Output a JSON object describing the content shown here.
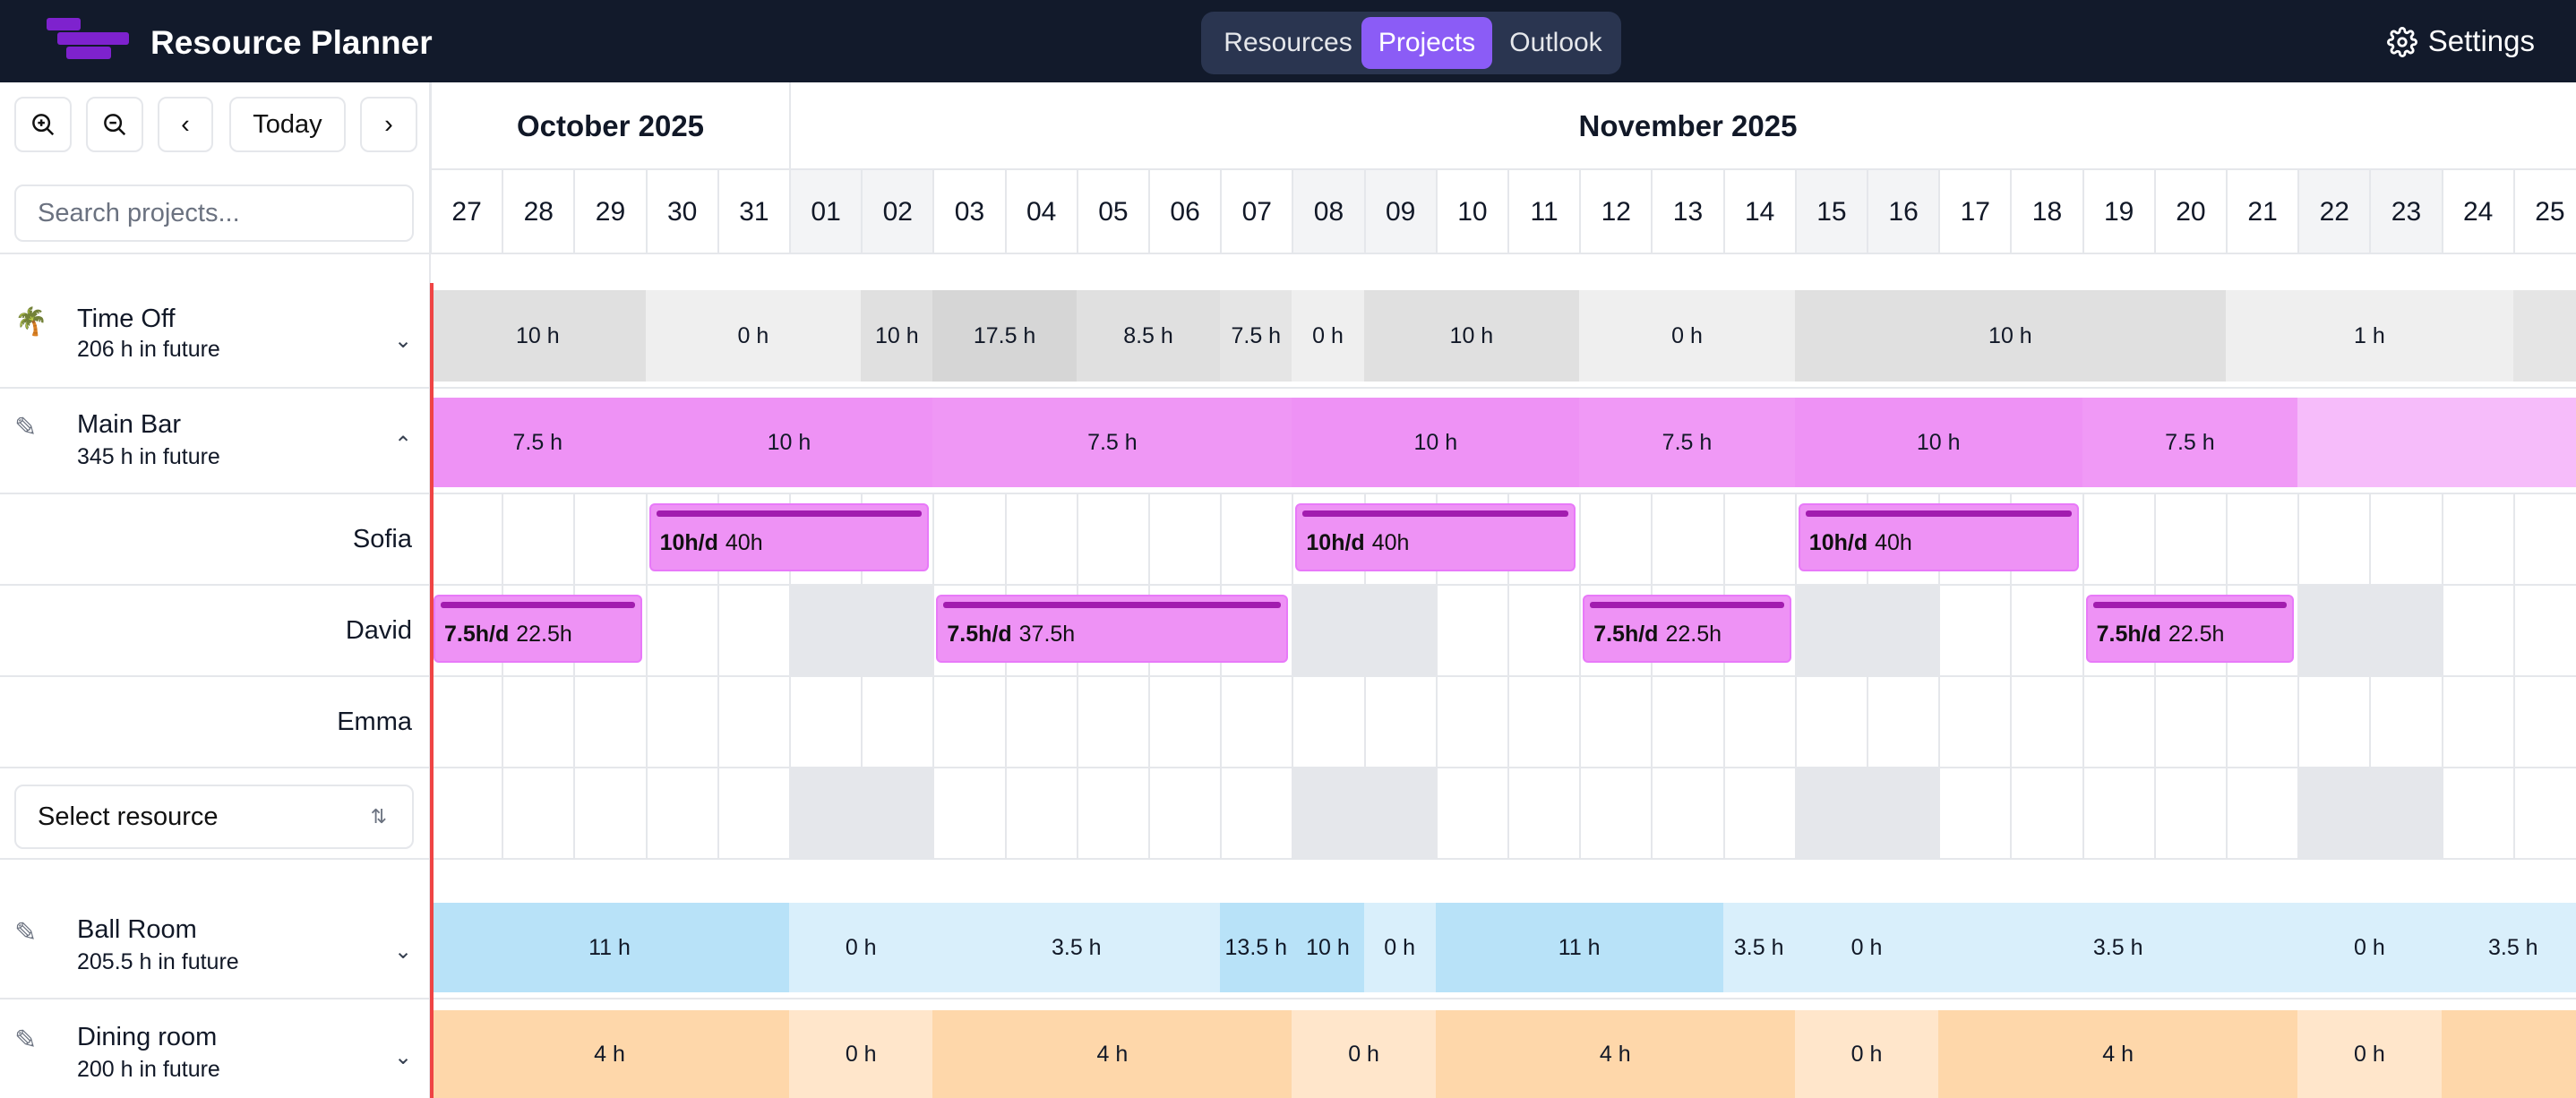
{
  "app": {
    "title": "Resource Planner"
  },
  "nav": {
    "tabs": [
      {
        "label": "Resources"
      },
      {
        "label": "Projects",
        "active": true
      },
      {
        "label": "Outlook"
      }
    ],
    "settings_label": "Settings"
  },
  "toolbar": {
    "today_label": "Today",
    "search_placeholder": "Search projects..."
  },
  "calendar": {
    "months": [
      {
        "label": "October 2025"
      },
      {
        "label": "November 2025"
      }
    ],
    "days": [
      "27",
      "28",
      "29",
      "30",
      "31",
      "01",
      "02",
      "03",
      "04",
      "05",
      "06",
      "07",
      "08",
      "09",
      "10",
      "11",
      "12",
      "13",
      "14",
      "15",
      "16",
      "17",
      "18",
      "19",
      "20",
      "21",
      "22",
      "23",
      "24",
      "25"
    ],
    "weekend_days": [
      "01",
      "02",
      "08",
      "09",
      "15",
      "16",
      "22",
      "23"
    ]
  },
  "projects": [
    {
      "name": "Time Off",
      "sub": "206 h in future",
      "icon": "palm-tree-icon",
      "expanded": false,
      "segments": [
        {
          "label": "10 h"
        },
        {
          "label": "0 h"
        },
        {
          "label": "10 h"
        },
        {
          "label": "17.5 h"
        },
        {
          "label": "8.5 h"
        },
        {
          "label": "7.5 h"
        },
        {
          "label": "0 h"
        },
        {
          "label": "10 h"
        },
        {
          "label": "0 h"
        },
        {
          "label": "10 h"
        },
        {
          "label": "1 h"
        },
        {
          "label": ""
        }
      ]
    },
    {
      "name": "Main Bar",
      "sub": "345 h in future",
      "icon": "pencil-icon",
      "expanded": true,
      "segments": [
        {
          "label": "7.5 h"
        },
        {
          "label": "10 h"
        },
        {
          "label": "7.5 h"
        },
        {
          "label": "10 h"
        },
        {
          "label": "7.5 h"
        },
        {
          "label": "10 h"
        },
        {
          "label": "7.5 h"
        },
        {
          "label": ""
        }
      ],
      "resources": [
        {
          "name": "Sofia",
          "assignments": [
            {
              "rate": "10h/d",
              "total": "40h"
            },
            {
              "rate": "10h/d",
              "total": "40h"
            },
            {
              "rate": "10h/d",
              "total": "40h"
            }
          ]
        },
        {
          "name": "David",
          "assignments": [
            {
              "rate": "7.5h/d",
              "total": "22.5h"
            },
            {
              "rate": "7.5h/d",
              "total": "37.5h"
            },
            {
              "rate": "7.5h/d",
              "total": "22.5h"
            },
            {
              "rate": "7.5h/d",
              "total": "22.5h"
            }
          ]
        },
        {
          "name": "Emma",
          "assignments": []
        }
      ],
      "select_resource_label": "Select resource"
    },
    {
      "name": "Ball Room",
      "sub": "205.5 h in future",
      "icon": "pencil-icon",
      "expanded": false,
      "segments": [
        {
          "label": "11 h"
        },
        {
          "label": "0 h"
        },
        {
          "label": "3.5 h"
        },
        {
          "label": "13.5 h"
        },
        {
          "label": "10 h"
        },
        {
          "label": "0 h"
        },
        {
          "label": "11 h"
        },
        {
          "label": "3.5 h"
        },
        {
          "label": "0 h"
        },
        {
          "label": "3.5 h"
        },
        {
          "label": "0 h"
        },
        {
          "label": "3.5 h"
        }
      ]
    },
    {
      "name": "Dining room",
      "sub": "200 h in future",
      "icon": "pencil-icon",
      "expanded": false,
      "segments": [
        {
          "label": "4 h"
        },
        {
          "label": "0 h"
        },
        {
          "label": "4 h"
        },
        {
          "label": "0 h"
        },
        {
          "label": "4 h"
        },
        {
          "label": "0 h"
        },
        {
          "label": "4 h"
        },
        {
          "label": "0 h"
        },
        {
          "label": ""
        }
      ]
    }
  ],
  "colors": {
    "accent": "#8b5cf6",
    "today_line": "#ef4444",
    "main_bar": "#ee92f5",
    "ball_room": "#b8e2f8",
    "dining_room": "#fed7aa",
    "time_off": "#e5e7eb"
  }
}
